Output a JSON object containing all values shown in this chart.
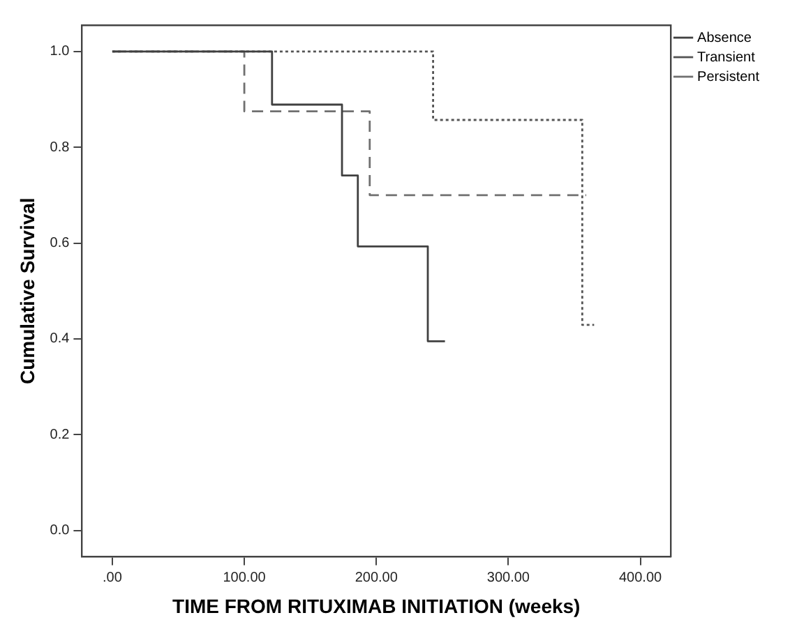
{
  "chart_data": {
    "type": "step",
    "xlabel": "TIME FROM RITUXIMAB INITIATION (weeks)",
    "ylabel": "Cumulative Survival",
    "xlim": [
      -23,
      423
    ],
    "ylim": [
      -0.055,
      1.055
    ],
    "xticks": [
      {
        "value": 0,
        "label": ".00"
      },
      {
        "value": 100,
        "label": "100.00"
      },
      {
        "value": 200,
        "label": "200.00"
      },
      {
        "value": 300,
        "label": "300.00"
      },
      {
        "value": 400,
        "label": "400.00"
      }
    ],
    "yticks": [
      {
        "value": 0,
        "label": "0.0"
      },
      {
        "value": 0.2,
        "label": "0.2"
      },
      {
        "value": 0.4,
        "label": "0.4"
      },
      {
        "value": 0.6,
        "label": "0.6"
      },
      {
        "value": 0.8,
        "label": "0.8"
      },
      {
        "value": 1,
        "label": "1.0"
      }
    ],
    "grid": false,
    "legend": "top right",
    "marker": "none",
    "series": [
      {
        "name": "Absence",
        "color": "#404040",
        "line_style": "solid",
        "x": [
          0,
          121,
          174,
          186,
          239,
          252
        ],
        "values": [
          1,
          0.889,
          0.741,
          0.593,
          0.395,
          0.395
        ]
      },
      {
        "name": "Transient",
        "color": "#555555",
        "line_style": "dotted",
        "x": [
          0,
          243,
          356,
          365
        ],
        "values": [
          1,
          0.857,
          0.429,
          0.429
        ]
      },
      {
        "name": "Persistent",
        "color": "#707070",
        "line_style": "dashed",
        "x": [
          0,
          100,
          195,
          359
        ],
        "values": [
          1,
          0.875,
          0.7,
          0.7
        ]
      }
    ]
  }
}
